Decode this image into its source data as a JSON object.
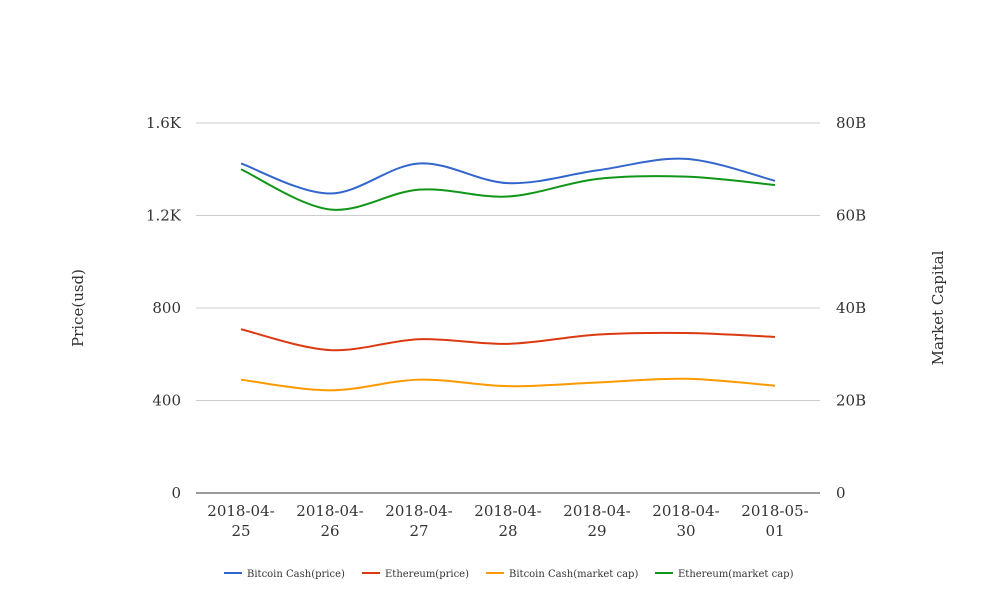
{
  "chart_data": {
    "type": "line",
    "categories": [
      "2018-04-25",
      "2018-04-26",
      "2018-04-27",
      "2018-04-28",
      "2018-04-29",
      "2018-04-30",
      "2018-05-01"
    ],
    "category_labels": [
      [
        "2018-04-",
        "25"
      ],
      [
        "2018-04-",
        "26"
      ],
      [
        "2018-04-",
        "27"
      ],
      [
        "2018-04-",
        "28"
      ],
      [
        "2018-04-",
        "29"
      ],
      [
        "2018-04-",
        "30"
      ],
      [
        "2018-05-",
        "01"
      ]
    ],
    "y_left": {
      "label": "Price(usd)",
      "range": [
        0,
        1600
      ],
      "ticks": [
        0,
        400,
        800,
        1200,
        1600
      ],
      "tick_labels": [
        "0",
        "400",
        "800",
        "1.2K",
        "1.6K"
      ]
    },
    "y_right": {
      "label": "Market Capital",
      "range": [
        0,
        80000000000
      ],
      "ticks": [
        0,
        20000000000,
        40000000000,
        60000000000,
        80000000000
      ],
      "tick_labels": [
        "0",
        "20B",
        "40B",
        "60B",
        "80B"
      ]
    },
    "grid": true,
    "legend_position": "bottom",
    "series": [
      {
        "name": "Bitcoin Cash(price)",
        "axis": "left",
        "color": "#3366cc",
        "values": [
          1425,
          1295,
          1425,
          1340,
          1395,
          1445,
          1350
        ]
      },
      {
        "name": "Ethereum(price)",
        "axis": "left",
        "color": "#dc3912",
        "values": [
          708,
          618,
          665,
          645,
          685,
          692,
          675
        ]
      },
      {
        "name": "Bitcoin Cash(market cap)",
        "axis": "right",
        "color": "#ff9900",
        "values": [
          24500000000,
          22200000000,
          24500000000,
          23100000000,
          23900000000,
          24700000000,
          23200000000
        ]
      },
      {
        "name": "Ethereum(market cap)",
        "axis": "right",
        "color": "#109618",
        "values": [
          70000000000,
          61300000000,
          65600000000,
          64100000000,
          67900000000,
          68400000000,
          66600000000
        ]
      }
    ]
  }
}
